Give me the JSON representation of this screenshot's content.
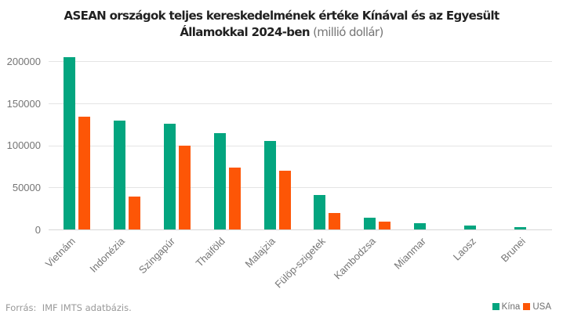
{
  "title": {
    "line1": "ASEAN országok teljes kereskedelmének értéke Kínával és az Egyesült",
    "line2_bold": "Államokkal 2024-ben",
    "line2_note": " (millió dollár)"
  },
  "footer": {
    "source": "Forrás:  IMF IMTS adatbázis."
  },
  "colors": {
    "china": "#03a57f",
    "usa": "#fd5606"
  },
  "chart_data": {
    "type": "bar",
    "categories": [
      "Vietnám",
      "Indonézia",
      "Szingapúr",
      "Thaiföld",
      "Malajzia",
      "Fülöp-szigetek",
      "Kambodzsa",
      "Mianmar",
      "Laosz",
      "Brunei"
    ],
    "series": [
      {
        "name": "Kína",
        "color": "#03a57f",
        "values": [
          205000,
          130000,
          126000,
          115000,
          105000,
          41000,
          14000,
          7500,
          4500,
          2500
        ]
      },
      {
        "name": "USA",
        "color": "#fd5606",
        "values": [
          134000,
          39000,
          100000,
          74000,
          70000,
          20000,
          9000,
          0,
          0,
          0
        ]
      }
    ],
    "title": "ASEAN országok teljes kereskedelmének értéke Kínával és az Egyesült Államokkal 2024-ben (millió dollár)",
    "xlabel": "",
    "ylabel": "",
    "ylim": [
      0,
      200000
    ],
    "yticks": [
      0,
      50000,
      100000,
      150000,
      200000
    ],
    "grid": true,
    "legend_position": "bottom-right",
    "legend": [
      "Kína",
      "USA"
    ]
  }
}
